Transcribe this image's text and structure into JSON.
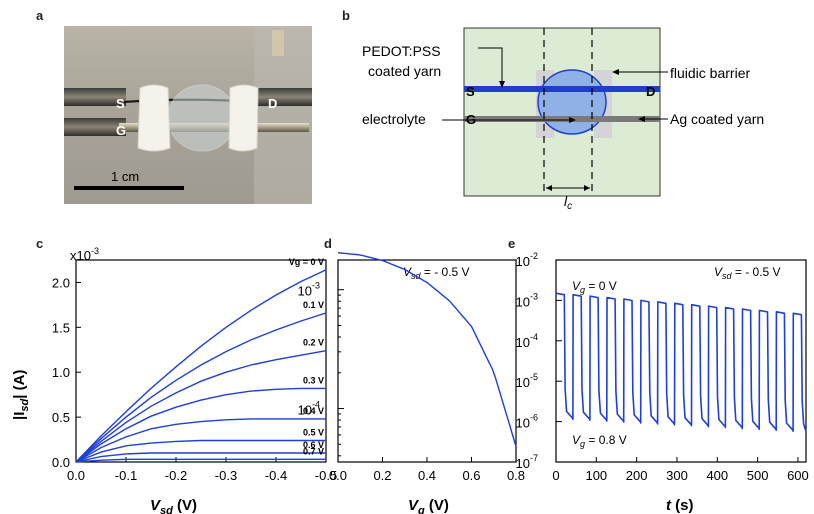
{
  "panels": {
    "a": {
      "letter": "a",
      "labels": {
        "s": "S",
        "d": "D",
        "g": "G"
      },
      "scale_bar": "1 cm"
    },
    "b": {
      "letter": "b",
      "labels": {
        "pedot_line1": "PEDOT:PSS",
        "pedot_line2": "coated yarn",
        "fluidic": "fluidic barrier",
        "electrolyte": "electrolyte",
        "ag": "Ag coated yarn",
        "s": "S",
        "d": "D",
        "g": "G",
        "lc": "l",
        "lc_sub": "c"
      },
      "colors": {
        "background": "#dcebd3",
        "pedot": "#1f3fc9",
        "ag": "#7a7a7a",
        "barrier": "#d3d3d8",
        "electrolyte": "#8fb1e6"
      }
    },
    "c": {
      "letter": "c",
      "multiplier": "x10",
      "multiplier_exp": "-3",
      "ylabel_main": "|I",
      "ylabel_sub": "sd",
      "ylabel_tail": "| (A)",
      "xlabel_main": "V",
      "xlabel_sub": "sd",
      "xlabel_tail": " (V)",
      "curve_labels": [
        "V_g = 0 V",
        "0.1 V",
        "0.2 V",
        "0.3 V",
        "0.4 V",
        "0.5 V",
        "0.6 V",
        "0.7 V"
      ]
    },
    "d": {
      "letter": "d",
      "annotation_main": "V",
      "annotation_sub": "sd",
      "annotation_tail": " = - 0.5 V",
      "xlabel_main": "V",
      "xlabel_sub": "g",
      "xlabel_tail": " (V)"
    },
    "e": {
      "letter": "e",
      "annotation_main": "V",
      "annotation_sub": "sd",
      "annotation_tail": " = - 0.5 V",
      "on_label_main": "V",
      "on_label_sub": "g",
      "on_label_tail": " = 0 V",
      "off_label_main": "V",
      "off_label_sub": "g",
      "off_label_tail": " = 0.8 V",
      "xlabel_main": "t",
      "xlabel_tail": " (s)"
    }
  },
  "chart_data": [
    {
      "type": "line",
      "panel": "c",
      "x": [
        0,
        -0.05,
        -0.1,
        -0.15,
        -0.2,
        -0.25,
        -0.3,
        -0.35,
        -0.4,
        -0.45,
        -0.5
      ],
      "series": [
        {
          "name": "V_g = 0 V",
          "values": [
            0,
            0.29,
            0.56,
            0.82,
            1.06,
            1.29,
            1.5,
            1.69,
            1.86,
            2.01,
            2.14
          ]
        },
        {
          "name": "0.1 V",
          "values": [
            0,
            0.26,
            0.5,
            0.72,
            0.91,
            1.08,
            1.23,
            1.36,
            1.47,
            1.57,
            1.66
          ]
        },
        {
          "name": "0.2 V",
          "values": [
            0,
            0.23,
            0.44,
            0.62,
            0.77,
            0.9,
            1.0,
            1.08,
            1.14,
            1.19,
            1.24
          ]
        },
        {
          "name": "0.3 V",
          "values": [
            0,
            0.2,
            0.37,
            0.51,
            0.61,
            0.69,
            0.75,
            0.79,
            0.81,
            0.82,
            0.82
          ]
        },
        {
          "name": "0.4 V",
          "values": [
            0,
            0.16,
            0.28,
            0.37,
            0.42,
            0.45,
            0.47,
            0.48,
            0.48,
            0.48,
            0.48
          ]
        },
        {
          "name": "0.5 V",
          "values": [
            0,
            0.11,
            0.18,
            0.21,
            0.23,
            0.24,
            0.24,
            0.24,
            0.24,
            0.24,
            0.24
          ]
        },
        {
          "name": "0.6 V",
          "values": [
            0,
            0.06,
            0.09,
            0.1,
            0.1,
            0.1,
            0.1,
            0.1,
            0.1,
            0.1,
            0.1
          ]
        },
        {
          "name": "0.7 V",
          "values": [
            0,
            0.02,
            0.03,
            0.03,
            0.03,
            0.03,
            0.03,
            0.03,
            0.03,
            0.03,
            0.03
          ]
        }
      ],
      "xlim": [
        0,
        -0.5
      ],
      "ylim": [
        0,
        2.25
      ],
      "xticks": [
        "0.0",
        "-0.1",
        "-0.2",
        "-0.3",
        "-0.4",
        "-0.5"
      ],
      "yticks": [
        "0.0",
        "0.5",
        "1.0",
        "1.5",
        "2.0"
      ],
      "color": "#1f3fd6"
    },
    {
      "type": "line",
      "panel": "d",
      "x": [
        0,
        0.1,
        0.2,
        0.3,
        0.4,
        0.5,
        0.6,
        0.7,
        0.8
      ],
      "values": [
        0.00205,
        0.00196,
        0.00176,
        0.00148,
        0.00115,
        0.00081,
        0.00049,
        0.000203,
        4.8e-05
      ],
      "xlim": [
        0,
        0.8
      ],
      "ylim_log10": [
        -4.45,
        -2.75
      ],
      "xticks": [
        "0.0",
        "0.2",
        "0.4",
        "0.6",
        "0.8"
      ],
      "yticks": [
        "10",
        "10"
      ],
      "ytick_exps": [
        "-3",
        "-4"
      ],
      "yscale": "log",
      "color": "#1f3fd6"
    },
    {
      "type": "line",
      "panel": "e",
      "xlim": [
        0,
        620
      ],
      "ylim_log10": [
        -7,
        -2
      ],
      "yscale": "log",
      "pulses_on_start": [
        0,
        42,
        84,
        126,
        168,
        210,
        252,
        294,
        336,
        378,
        420,
        462,
        504,
        546,
        588
      ],
      "on_duration": 21,
      "on_level_start": 0.0015,
      "on_level_end": 0.00048,
      "off_level_start": 1.2e-06,
      "off_level_end": 5.8e-07,
      "xticks": [
        "0",
        "100",
        "200",
        "300",
        "400",
        "500",
        "600"
      ],
      "yticks": [
        "10",
        "10",
        "10",
        "10",
        "10",
        "10"
      ],
      "ytick_exps": [
        "-2",
        "-3",
        "-4",
        "-5",
        "-6",
        "-7"
      ],
      "color": "#1f3fd6"
    }
  ]
}
